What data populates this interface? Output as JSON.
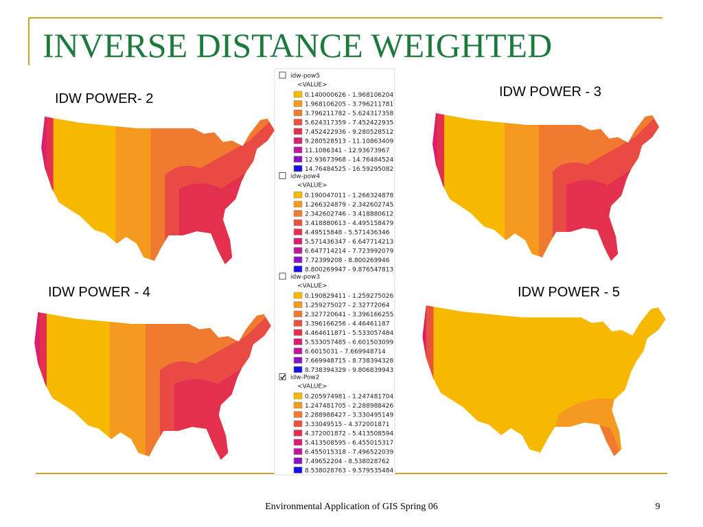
{
  "title": "INVERSE DISTANCE WEIGHTED",
  "maps": [
    {
      "label": "IDW POWER- 2"
    },
    {
      "label": "IDW POWER - 3"
    },
    {
      "label": "IDW POWER - 4"
    },
    {
      "label": "IDW POWER - 5"
    }
  ],
  "legend": {
    "colors": [
      "#f7b800",
      "#f59a1e",
      "#f07a30",
      "#ea5240",
      "#e2304e",
      "#d81f70",
      "#c0189c",
      "#8a14c4",
      "#1a12e4"
    ],
    "layers": [
      {
        "name": "idw-pow5",
        "checked": false,
        "field": "<VALUE>",
        "classes": [
          "0.140000626 - 1.968106204",
          "1.968106205 - 3.796211781",
          "3.796211782 - 5.624317358",
          "5.624317359 - 7.452422935",
          "7.452422936 - 9.280528512",
          "9.280528513 - 11.10863409",
          "11.1086341 - 12.93673967",
          "12.93673968 - 14.76484524",
          "14.76484525 - 16.59295082"
        ]
      },
      {
        "name": "idw-pow4",
        "checked": false,
        "field": "<VALUE>",
        "classes": [
          "0.190047011 - 1.266324878",
          "1.266324879 - 2.342602745",
          "2.342602746 - 3.418880612",
          "3.418880613 - 4.495158479",
          "4.49515848 - 5.571436346",
          "5.571436347 - 6.647714213",
          "6.647714214 - 7.723992079",
          "7.72399208 - 8.800269946",
          "8.800269947 - 9.876547813"
        ]
      },
      {
        "name": "idw-pow3",
        "checked": false,
        "field": "<VALUE>",
        "classes": [
          "0.190829411 - 1.259275026",
          "1.259275027 - 2.32772064",
          "2.327720641 - 3.396166255",
          "3.396166256 - 4.46461187",
          "4.464611871 - 5.533057484",
          "5.533057485 - 6.601503099",
          "6.6015031 - 7.669948714",
          "7.669948715 - 8.738394328",
          "8.738394329 - 9.806839943"
        ]
      },
      {
        "name": "idw-Pow2",
        "checked": true,
        "field": "<VALUE>",
        "classes": [
          "0.205974981 - 1.247481704",
          "1.247481705 - 2.288988426",
          "2.288988427 - 3.330495149",
          "3.33049515 - 4.372001871",
          "4.372001872 - 5.413508594",
          "5.413508595 - 6.455015317",
          "6.455015318 - 7.496522039",
          "7.49652204 - 8.538028762",
          "8.538028763 - 9.579535484"
        ]
      }
    ]
  },
  "footer": {
    "text": "Environmental Application of  GIS Spring 06",
    "page": "9"
  }
}
